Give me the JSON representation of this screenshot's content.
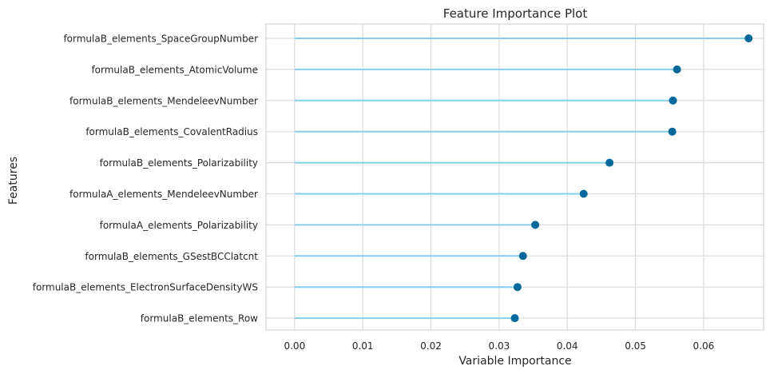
{
  "chart_data": {
    "type": "lollipop",
    "title": "Feature Importance Plot",
    "xlabel": "Variable Importance",
    "ylabel": "Features",
    "xlim": [
      -0.0042,
      0.0688
    ],
    "xticks": [
      0.0,
      0.01,
      0.02,
      0.03,
      0.04,
      0.05,
      0.06
    ],
    "xtick_labels": [
      "0.00",
      "0.01",
      "0.02",
      "0.03",
      "0.04",
      "0.05",
      "0.06"
    ],
    "grid": true,
    "colors": {
      "stem": "#87ceeb",
      "marker": "#00689b",
      "grid": "#dcdcdc",
      "frame": "#cccccc",
      "text": "#262626"
    },
    "categories": [
      "formulaB_elements_SpaceGroupNumber",
      "formulaB_elements_AtomicVolume",
      "formulaB_elements_MendeleevNumber",
      "formulaB_elements_CovalentRadius",
      "formulaB_elements_Polarizability",
      "formulaA_elements_MendeleevNumber",
      "formulaA_elements_Polarizability",
      "formulaB_elements_GSestBCClatcnt",
      "formulaB_elements_ElectronSurfaceDensityWS",
      "formulaB_elements_Row"
    ],
    "values": [
      0.0666,
      0.0561,
      0.0555,
      0.0554,
      0.0462,
      0.0424,
      0.0353,
      0.0335,
      0.0327,
      0.0323
    ]
  }
}
